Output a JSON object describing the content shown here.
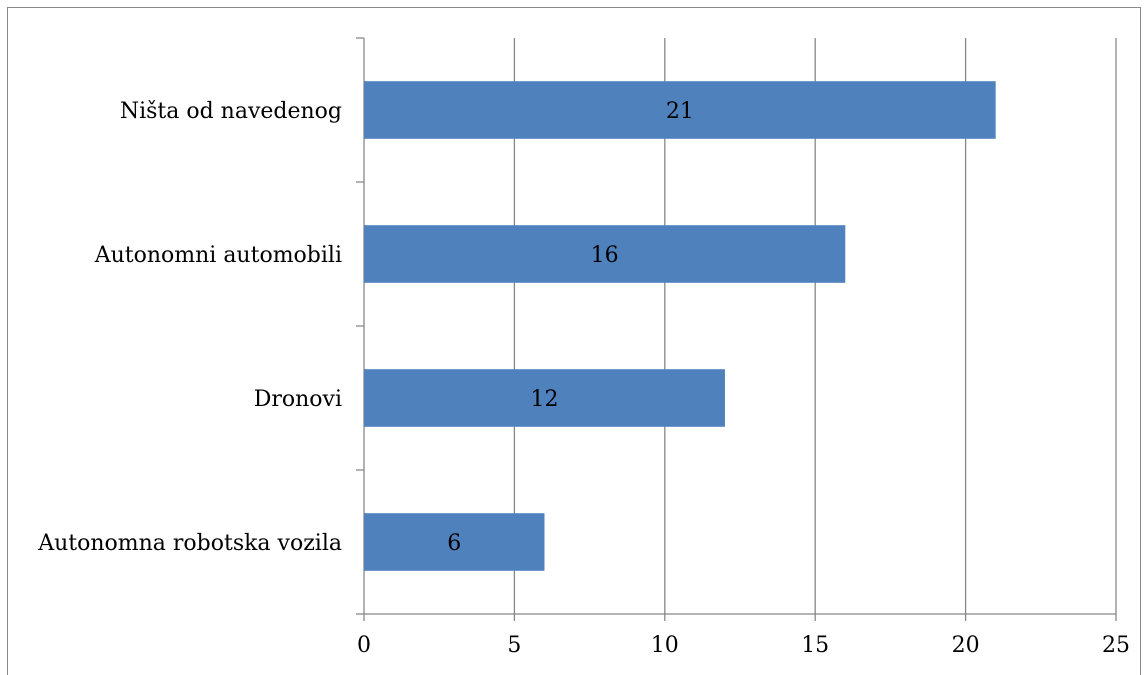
{
  "chart_data": {
    "type": "bar",
    "orientation": "horizontal",
    "categories": [
      "Ništa od navedenog",
      "Autonomni automobili",
      "Dronovi",
      "Autonomna robotska vozila"
    ],
    "values": [
      21,
      16,
      12,
      6
    ],
    "data_labels": [
      "21",
      "16",
      "12",
      "6"
    ],
    "title": "",
    "xlabel": "",
    "ylabel": "",
    "xlim": [
      0,
      25
    ],
    "xticks": [
      0,
      5,
      10,
      15,
      20,
      25
    ],
    "xtick_labels": [
      "0",
      "5",
      "10",
      "15",
      "20",
      "25"
    ],
    "grid": "vertical",
    "legend": "none",
    "colors": {
      "bar": "#4f81bd",
      "grid": "#888888",
      "axis": "#888888",
      "text": "#000000"
    }
  }
}
